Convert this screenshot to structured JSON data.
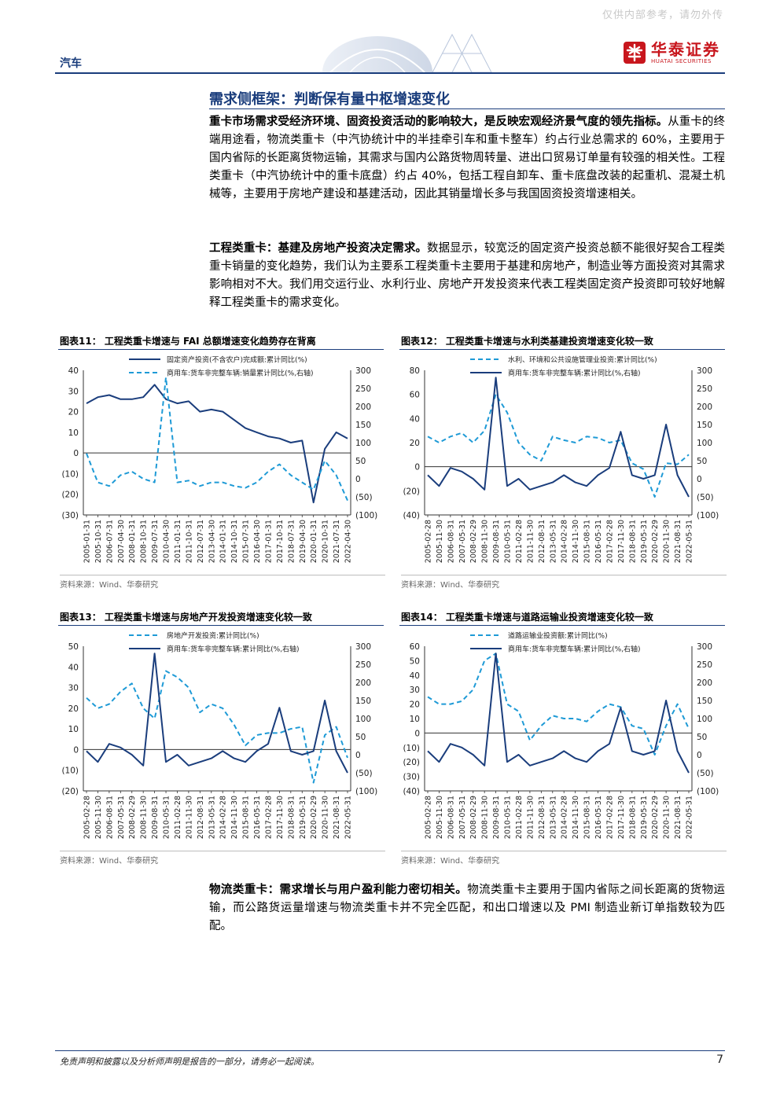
{
  "header": {
    "watermark": "仅供内部参考，请勿外传",
    "section": "汽车",
    "logo_cn": "华泰证券",
    "logo_en": "HUATAI SECURITIES"
  },
  "section_title": "需求侧框架：判断保有量中枢增速变化",
  "paragraphs": [
    {
      "bold": "重卡市场需求受经济环境、固资投资活动的影响较大，是反映宏观经济景气度的领先指标。",
      "text": "从重卡的终端用途看，物流类重卡（中汽协统计中的半挂牵引车和重卡整车）约占行业总需求的 60%，主要用于国内省际的长距离货物运输，其需求与国内公路货物周转量、进出口贸易订单量有较强的相关性。工程类重卡（中汽协统计中的重卡底盘）约占 40%，包括工程自卸车、重卡底盘改装的起重机、混凝土机械等，主要用于房地产建设和基建活动，因此其销量增长多与我国固资投资增速相关。"
    },
    {
      "bold": "工程类重卡：基建及房地产投资决定需求。",
      "text": "数据显示，较宽泛的固定资产投资总额不能很好契合工程类重卡销量的变化趋势，我们认为主要系工程类重卡主要用于基建和房地产，制造业等方面投资对其需求影响相对不大。我们用交运行业、水利行业、房地产开发投资来代表工程类固定资产投资即可较好地解释工程类重卡的需求变化。"
    },
    {
      "bold": "物流类重卡：需求增长与用户盈利能力密切相关。",
      "text": "物流类重卡主要用于国内省际之间长距离的货物运输，而公路货运量增速与物流类重卡并不完全匹配，和出口增速以及 PMI 制造业新订单指数较为匹配。"
    }
  ],
  "figures": [
    {
      "title": "图表11：  工程类重卡增速与 FAI 总额增速变化趋势存在背离",
      "source": "资料来源：Wind、华泰研究"
    },
    {
      "title": "图表12：  工程类重卡增速与水利类基建投资增速变化较一致",
      "source": "资料来源：Wind、华泰研究"
    },
    {
      "title": "图表13：  工程类重卡增速与房地产开发投资增速变化较一致",
      "source": "资料来源：Wind、华泰研究"
    },
    {
      "title": "图表14：  工程类重卡增速与道路运输业投资增速变化较一致",
      "source": "资料来源：Wind、华泰研究"
    }
  ],
  "chart_data": [
    {
      "type": "line",
      "title": "",
      "legend_placement": "top-center",
      "series": [
        {
          "name": "固定资产投资(不含农户)完成额:累计同比(%)",
          "axis": "left",
          "style": "solid",
          "color": "#1a3d7c",
          "x": [
            "2005-01",
            "2005-10",
            "2006-07",
            "2007-04",
            "2008-01",
            "2008-10",
            "2009-07",
            "2010-04",
            "2011-01",
            "2011-10",
            "2012-07",
            "2013-04",
            "2014-01",
            "2014-10",
            "2015-07",
            "2016-04",
            "2017-01",
            "2017-10",
            "2018-07",
            "2019-04",
            "2020-01",
            "2020-10",
            "2021-07",
            "2022-04"
          ],
          "values": [
            24,
            27,
            28,
            26,
            26,
            27,
            33,
            26,
            24,
            25,
            20,
            21,
            20,
            16,
            12,
            10,
            8,
            7,
            5,
            6,
            -24,
            2,
            10,
            7
          ]
        },
        {
          "name": "商用车:货车非完整车辆:销量累计同比(%,右轴)",
          "axis": "right",
          "style": "dashed",
          "color": "#1e9ad6",
          "x": [
            "2005-01",
            "2005-10",
            "2006-07",
            "2007-04",
            "2008-01",
            "2008-10",
            "2009-07",
            "2010-04",
            "2011-01",
            "2011-10",
            "2012-07",
            "2013-04",
            "2014-01",
            "2014-10",
            "2015-07",
            "2016-04",
            "2017-01",
            "2017-10",
            "2018-07",
            "2019-04",
            "2020-01",
            "2020-10",
            "2021-07",
            "2022-04"
          ],
          "values": [
            70,
            -10,
            -20,
            10,
            20,
            0,
            -10,
            280,
            -10,
            -5,
            -20,
            -10,
            -10,
            -20,
            -25,
            -10,
            20,
            40,
            10,
            -10,
            -30,
            50,
            10,
            -60
          ]
        }
      ],
      "left_axis": {
        "ylim": [
          -30,
          40
        ],
        "ticks": [
          "40",
          "30",
          "20",
          "10",
          "0",
          "(10)",
          "(20)",
          "(30)"
        ]
      },
      "right_axis": {
        "ylim": [
          -100,
          300
        ],
        "ticks": [
          "300",
          "250",
          "200",
          "150",
          "100",
          "50",
          "0",
          "(50)",
          "(100)"
        ]
      },
      "x_tick_labels": [
        "2005-01-31",
        "2005-10-31",
        "2006-07-31",
        "2007-04-30",
        "2008-01-31",
        "2008-10-31",
        "2009-07-31",
        "2010-04-30",
        "2011-01-31",
        "2011-10-31",
        "2012-07-31",
        "2013-04-30",
        "2014-01-31",
        "2014-10-31",
        "2015-07-31",
        "2016-04-30",
        "2017-01-31",
        "2017-10-31",
        "2018-07-31",
        "2019-04-30",
        "2020-01-31",
        "2020-10-31",
        "2021-07-31",
        "2022-04-30"
      ]
    },
    {
      "type": "line",
      "title": "",
      "legend_placement": "top-center",
      "series": [
        {
          "name": "水利、环境和公共设施管理业投资:累计同比(%)",
          "axis": "left",
          "style": "dashed",
          "color": "#1e9ad6",
          "x": [
            "2005-02",
            "2005-11",
            "2006-08",
            "2007-05",
            "2008-02",
            "2008-11",
            "2009-08",
            "2010-05",
            "2011-02",
            "2011-11",
            "2012-08",
            "2013-05",
            "2014-02",
            "2014-11",
            "2015-08",
            "2016-05",
            "2017-02",
            "2017-11",
            "2018-08",
            "2019-05",
            "2020-02",
            "2020-11",
            "2021-08",
            "2022-05"
          ],
          "values": [
            25,
            20,
            25,
            28,
            20,
            30,
            60,
            45,
            20,
            10,
            5,
            25,
            22,
            20,
            25,
            24,
            20,
            22,
            3,
            -2,
            -25,
            3,
            2,
            10
          ]
        },
        {
          "name": "商用车:货车非完整车辆:累计同比(%,右轴)",
          "axis": "right",
          "style": "solid",
          "color": "#1a3d7c",
          "x": [
            "2005-02",
            "2005-11",
            "2006-08",
            "2007-05",
            "2008-02",
            "2008-11",
            "2009-08",
            "2010-05",
            "2011-02",
            "2011-11",
            "2012-08",
            "2013-05",
            "2014-02",
            "2014-11",
            "2015-08",
            "2016-05",
            "2017-02",
            "2017-11",
            "2018-08",
            "2019-05",
            "2020-02",
            "2020-11",
            "2021-08",
            "2022-05"
          ],
          "values": [
            10,
            -20,
            30,
            20,
            0,
            -30,
            280,
            -20,
            0,
            -30,
            -20,
            -10,
            10,
            -10,
            -20,
            10,
            30,
            130,
            10,
            0,
            10,
            150,
            10,
            -50
          ]
        }
      ],
      "left_axis": {
        "ylim": [
          -40,
          80
        ],
        "ticks": [
          "80",
          "60",
          "40",
          "20",
          "0",
          "(20)",
          "(40)"
        ]
      },
      "right_axis": {
        "ylim": [
          -100,
          300
        ],
        "ticks": [
          "300",
          "250",
          "200",
          "150",
          "100",
          "50",
          "0",
          "(50)",
          "(100)"
        ]
      },
      "x_tick_labels": [
        "2005-02-28",
        "2005-11-30",
        "2006-08-31",
        "2007-05-31",
        "2008-02-29",
        "2008-11-30",
        "2009-08-31",
        "2010-05-31",
        "2011-02-28",
        "2011-11-30",
        "2012-08-31",
        "2013-05-31",
        "2014-02-28",
        "2014-11-30",
        "2015-08-31",
        "2016-05-31",
        "2017-02-28",
        "2017-11-30",
        "2018-08-31",
        "2019-05-31",
        "2020-02-29",
        "2020-11-30",
        "2021-08-31",
        "2022-05-31"
      ]
    },
    {
      "type": "line",
      "title": "",
      "legend_placement": "top-center",
      "series": [
        {
          "name": "房地产开发投资:累计同比(%)",
          "axis": "left",
          "style": "dashed",
          "color": "#1e9ad6",
          "x": [
            "2005-02",
            "2005-11",
            "2006-08",
            "2007-05",
            "2008-02",
            "2008-11",
            "2009-08",
            "2010-05",
            "2011-02",
            "2011-11",
            "2012-08",
            "2013-05",
            "2014-02",
            "2014-11",
            "2015-08",
            "2016-05",
            "2017-02",
            "2017-11",
            "2018-08",
            "2019-05",
            "2020-02",
            "2020-11",
            "2021-08",
            "2022-05"
          ],
          "values": [
            25,
            20,
            22,
            28,
            32,
            20,
            15,
            38,
            35,
            30,
            18,
            22,
            20,
            12,
            2,
            7,
            8,
            8,
            10,
            11,
            -16,
            7,
            11,
            -4
          ]
        },
        {
          "name": "商用车:货车非完整车辆:累计同比(%,右轴)",
          "axis": "right",
          "style": "solid",
          "color": "#1a3d7c",
          "x": [
            "2005-02",
            "2005-11",
            "2006-08",
            "2007-05",
            "2008-02",
            "2008-11",
            "2009-08",
            "2010-05",
            "2011-02",
            "2011-11",
            "2012-08",
            "2013-05",
            "2014-02",
            "2014-11",
            "2015-08",
            "2016-05",
            "2017-02",
            "2017-11",
            "2018-08",
            "2019-05",
            "2020-02",
            "2020-11",
            "2021-08",
            "2022-05"
          ],
          "values": [
            10,
            -20,
            30,
            20,
            0,
            -30,
            280,
            -20,
            0,
            -30,
            -20,
            -10,
            10,
            -10,
            -20,
            10,
            30,
            130,
            10,
            0,
            10,
            150,
            10,
            -50
          ]
        }
      ],
      "left_axis": {
        "ylim": [
          -20,
          50
        ],
        "ticks": [
          "50",
          "40",
          "30",
          "20",
          "10",
          "0",
          "(10)",
          "(20)"
        ]
      },
      "right_axis": {
        "ylim": [
          -100,
          300
        ],
        "ticks": [
          "300",
          "250",
          "200",
          "150",
          "100",
          "50",
          "0",
          "(50)",
          "(100)"
        ]
      },
      "x_tick_labels": [
        "2005-02-28",
        "2005-11-30",
        "2006-08-31",
        "2007-05-31",
        "2008-02-29",
        "2008-11-30",
        "2009-08-31",
        "2010-05-31",
        "2011-02-28",
        "2011-11-30",
        "2012-08-31",
        "2013-05-31",
        "2014-02-28",
        "2014-11-30",
        "2015-08-31",
        "2016-05-31",
        "2017-02-28",
        "2017-11-30",
        "2018-08-31",
        "2019-05-31",
        "2020-02-29",
        "2020-11-30",
        "2021-08-31",
        "2022-05-31"
      ]
    },
    {
      "type": "line",
      "title": "",
      "legend_placement": "top-center",
      "series": [
        {
          "name": "道路运输业投资额:累计同比(%)",
          "axis": "left",
          "style": "dashed",
          "color": "#1e9ad6",
          "x": [
            "2005-02",
            "2005-11",
            "2006-08",
            "2007-05",
            "2008-02",
            "2008-11",
            "2009-08",
            "2010-05",
            "2011-02",
            "2011-11",
            "2012-08",
            "2013-05",
            "2014-02",
            "2014-11",
            "2015-08",
            "2016-05",
            "2017-02",
            "2017-11",
            "2018-08",
            "2019-05",
            "2020-02",
            "2020-11",
            "2021-08",
            "2022-05"
          ],
          "values": [
            25,
            20,
            20,
            22,
            30,
            50,
            55,
            20,
            15,
            -5,
            5,
            12,
            10,
            10,
            8,
            15,
            20,
            18,
            5,
            3,
            -15,
            5,
            20,
            3
          ]
        },
        {
          "name": "商用车:货车非完整车辆:累计同比(%,右轴)",
          "axis": "right",
          "style": "solid",
          "color": "#1a3d7c",
          "x": [
            "2005-02",
            "2005-11",
            "2006-08",
            "2007-05",
            "2008-02",
            "2008-11",
            "2009-08",
            "2010-05",
            "2011-02",
            "2011-11",
            "2012-08",
            "2013-05",
            "2014-02",
            "2014-11",
            "2015-08",
            "2016-05",
            "2017-02",
            "2017-11",
            "2018-08",
            "2019-05",
            "2020-02",
            "2020-11",
            "2021-08",
            "2022-05"
          ],
          "values": [
            10,
            -20,
            30,
            20,
            0,
            -30,
            280,
            -20,
            0,
            -30,
            -20,
            -10,
            10,
            -10,
            -20,
            10,
            30,
            130,
            10,
            0,
            10,
            150,
            10,
            -50
          ]
        }
      ],
      "left_axis": {
        "ylim": [
          -40,
          60
        ],
        "ticks": [
          "60",
          "50",
          "40",
          "30",
          "20",
          "10",
          "0",
          "(10)",
          "(20)",
          "(30)",
          "(40)"
        ]
      },
      "right_axis": {
        "ylim": [
          -100,
          300
        ],
        "ticks": [
          "300",
          "250",
          "200",
          "150",
          "100",
          "50",
          "0",
          "(50)",
          "(100)"
        ]
      },
      "x_tick_labels": [
        "2005-02-28",
        "2005-11-30",
        "2006-08-31",
        "2007-05-31",
        "2008-02-29",
        "2008-11-30",
        "2009-08-31",
        "2010-05-31",
        "2011-02-28",
        "2011-11-30",
        "2012-08-31",
        "2013-05-31",
        "2014-02-28",
        "2014-11-30",
        "2015-08-31",
        "2016-05-31",
        "2017-02-28",
        "2017-11-30",
        "2018-08-31",
        "2019-05-31",
        "2020-02-29",
        "2020-11-30",
        "2021-08-31",
        "2022-05-31"
      ]
    }
  ],
  "footer": {
    "disclaimer": "免责声明和披露以及分析师声明是报告的一部分，请务必一起阅读。",
    "page": "7"
  }
}
